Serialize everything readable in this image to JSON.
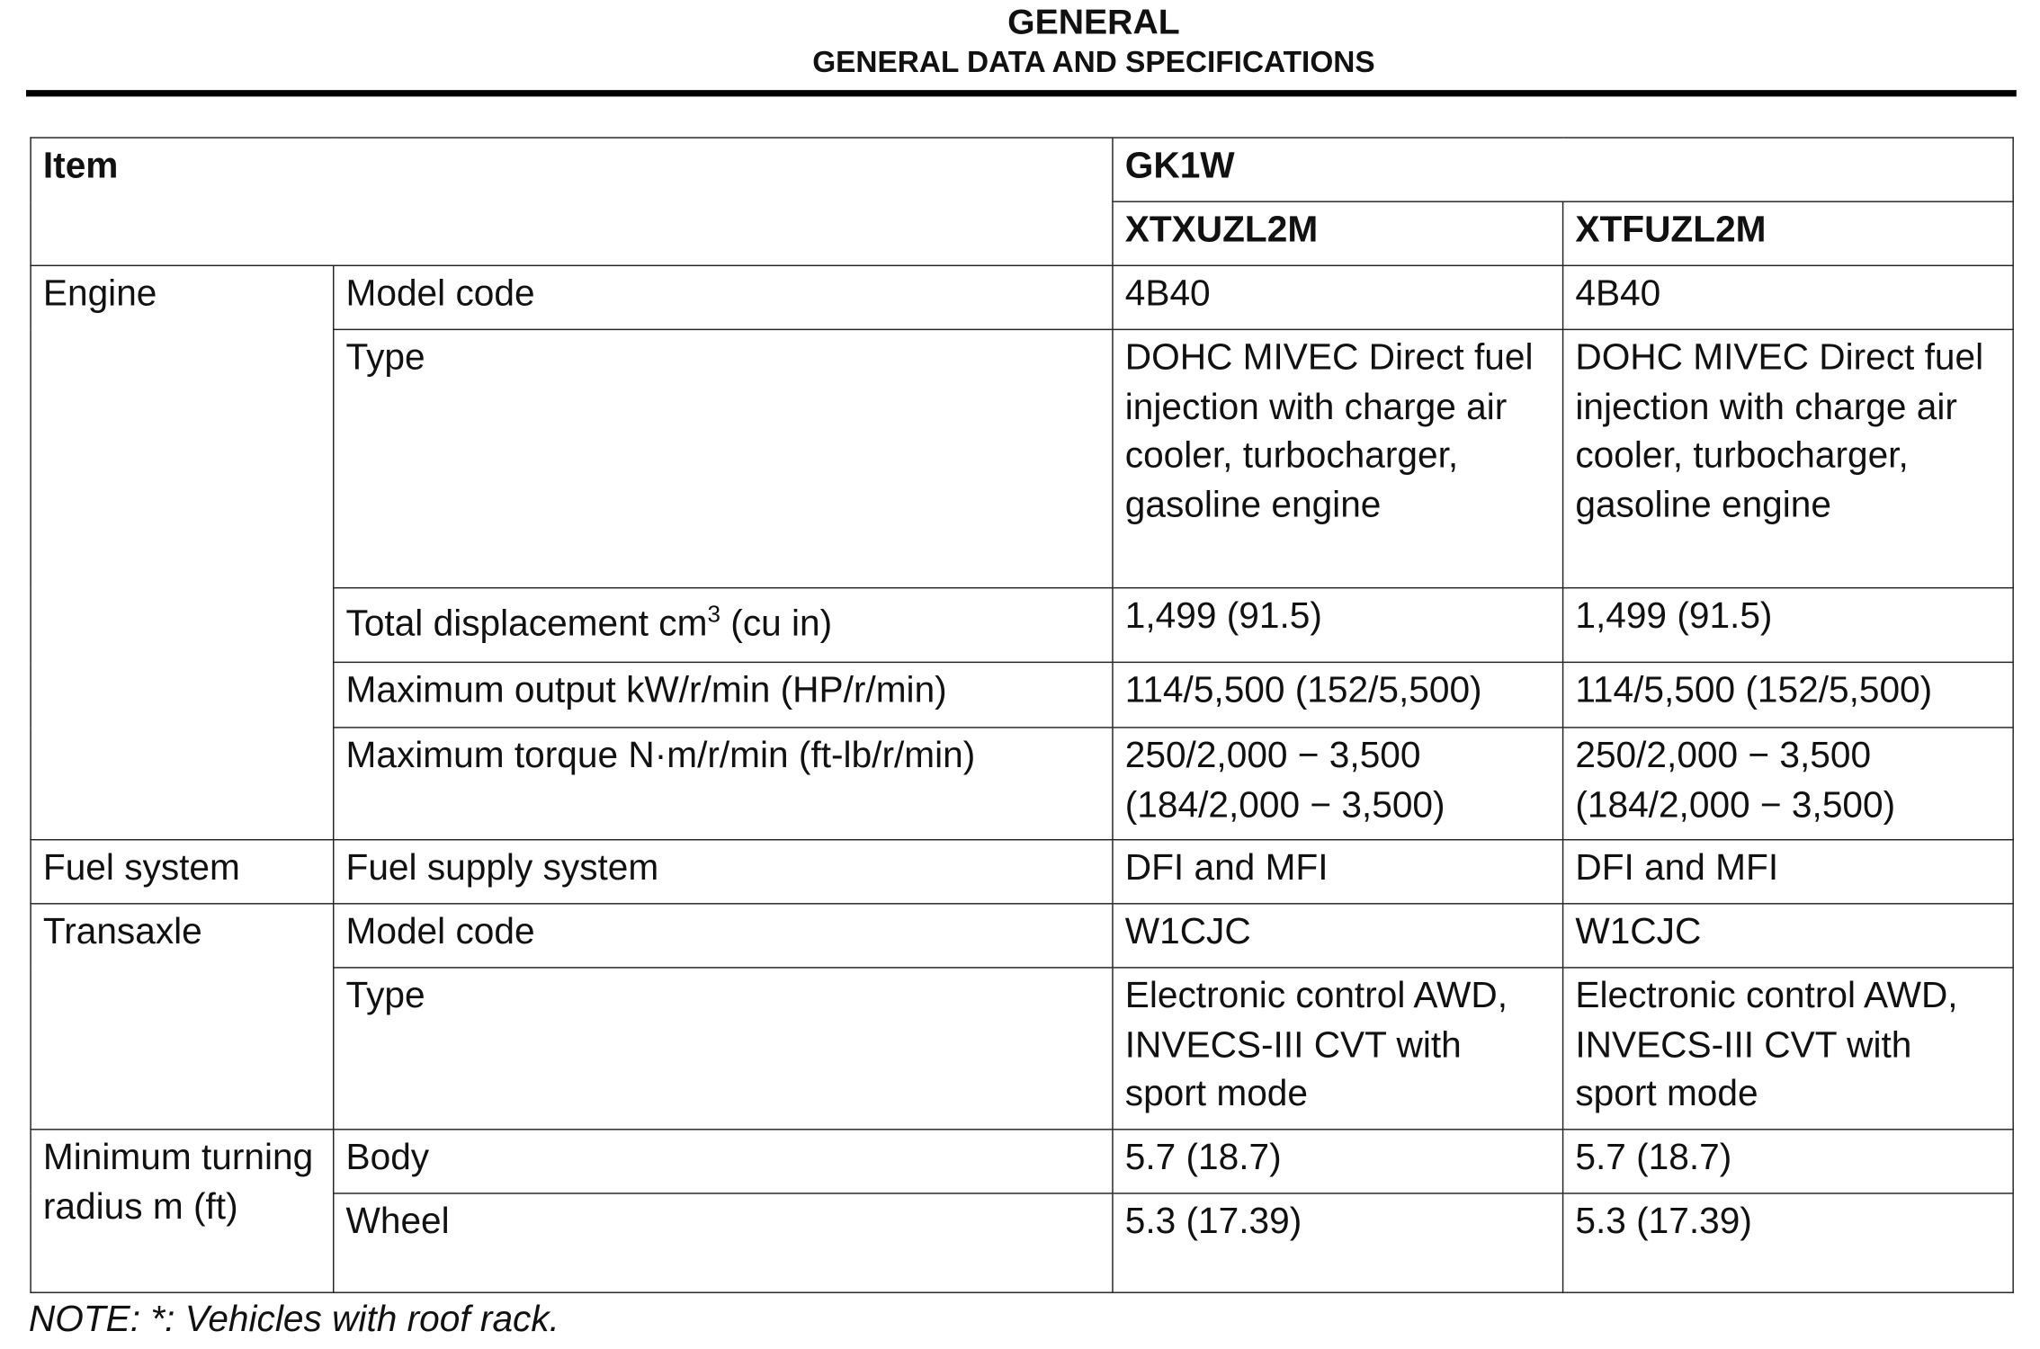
{
  "header": {
    "title": "GENERAL",
    "subtitle": "GENERAL DATA AND SPECIFICATIONS"
  },
  "table": {
    "item_header": "Item",
    "group_header": "GK1W",
    "models": [
      "XTXUZL2M",
      "XTFUZL2M"
    ],
    "rows": [
      {
        "group": "Engine",
        "label": "Model code",
        "values": [
          "4B40",
          "4B40"
        ]
      },
      {
        "label": "Type",
        "values": [
          "DOHC MIVEC Direct fuel injection with charge air cooler, turbocharger, gasoline engine",
          "DOHC MIVEC Direct fuel injection with charge air cooler, turbocharger, gasoline engine"
        ]
      },
      {
        "label": "Total displacement cm",
        "label_sup": "3",
        "label_suffix": " (cu in)",
        "values": [
          "1,499 (91.5)",
          "1,499 (91.5)"
        ]
      },
      {
        "label": "Maximum output kW/r/min (HP/r/min)",
        "values": [
          "114/5,500 (152/5,500)",
          "114/5,500 (152/5,500)"
        ]
      },
      {
        "label": "Maximum torque N·m/r/min (ft-lb/r/min)",
        "values": [
          "250/2,000 − 3,500 (184/2,000 − 3,500)",
          "250/2,000 − 3,500 (184/2,000 − 3,500)"
        ]
      },
      {
        "group": "Fuel system",
        "label": "Fuel supply system",
        "values": [
          "DFI and MFI",
          "DFI and MFI"
        ]
      },
      {
        "group": "Transaxle",
        "label": "Model code",
        "values": [
          "W1CJC",
          "W1CJC"
        ]
      },
      {
        "label": "Type",
        "values": [
          "Electronic control AWD, INVECS-III CVT with sport mode",
          "Electronic control AWD, INVECS-III CVT with sport mode"
        ]
      },
      {
        "group": "Minimum turning radius m (ft)",
        "label": "Body",
        "values": [
          "5.7 (18.7)",
          "5.7 (18.7)"
        ]
      },
      {
        "label": "Wheel",
        "values": [
          "5.3 (17.39)",
          "5.3 (17.39)"
        ]
      }
    ]
  },
  "note": "NOTE: *: Vehicles with roof rack."
}
